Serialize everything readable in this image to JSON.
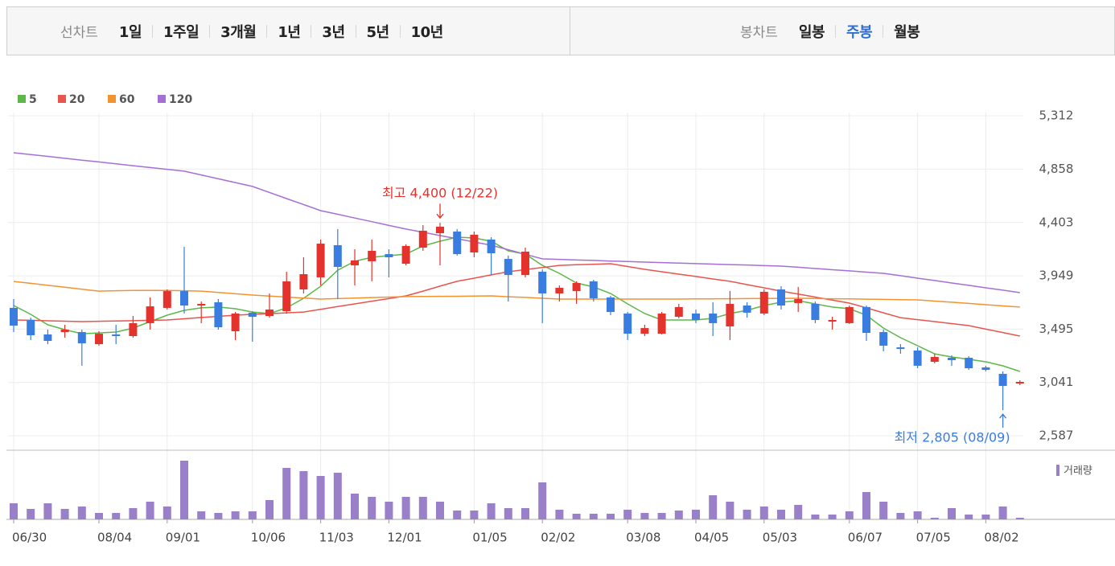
{
  "toolbar": {
    "line_label": "선차트",
    "periods": [
      "1일",
      "1주일",
      "3개월",
      "1년",
      "3년",
      "5년",
      "10년"
    ],
    "candle_label": "봉차트",
    "candle_periods": [
      "일봉",
      "주봉",
      "월봉"
    ],
    "selected": "주봉"
  },
  "chart_data": {
    "type": "candlestick",
    "categories": [
      "06/30",
      null,
      null,
      null,
      null,
      "08/04",
      null,
      null,
      null,
      "09/01",
      null,
      null,
      null,
      null,
      "10/06",
      null,
      null,
      null,
      "11/03",
      null,
      null,
      null,
      "12/01",
      null,
      null,
      null,
      null,
      "01/05",
      null,
      null,
      null,
      "02/02",
      null,
      null,
      null,
      null,
      "03/08",
      null,
      null,
      null,
      "04/05",
      null,
      null,
      null,
      "05/03",
      null,
      null,
      null,
      null,
      "06/07",
      null,
      null,
      null,
      "07/05",
      null,
      null,
      null,
      "08/02",
      null,
      null
    ],
    "open": [
      3676,
      3573,
      3450,
      3470,
      3470,
      3367,
      3450,
      3436,
      3546,
      3676,
      3819,
      3696,
      3724,
      3477,
      3635,
      3607,
      3648,
      3833,
      3936,
      4210,
      4038,
      4073,
      4134,
      4052,
      4189,
      4312,
      4326,
      4148,
      4258,
      4093,
      3956,
      3984,
      3799,
      3819,
      3902,
      3765,
      3628,
      3456,
      3456,
      3600,
      3628,
      3628,
      3518,
      3696,
      3628,
      3833,
      3717,
      3710,
      3559,
      3546,
      3683,
      3470,
      3340,
      3313,
      3217,
      3251,
      3251,
      3169,
      3114,
      3032
    ],
    "high": [
      3751,
      3593,
      3491,
      3532,
      3491,
      3477,
      3532,
      3607,
      3765,
      3833,
      4196,
      3730,
      3751,
      3641,
      3648,
      3799,
      3984,
      4107,
      4258,
      4347,
      4175,
      4258,
      4175,
      4217,
      4381,
      4400,
      4347,
      4326,
      4278,
      4121,
      4189,
      4004,
      3867,
      3902,
      3915,
      3778,
      3641,
      3532,
      3641,
      3710,
      3662,
      3724,
      3819,
      3724,
      3833,
      3860,
      3854,
      3730,
      3600,
      3696,
      3696,
      3491,
      3367,
      3340,
      3285,
      3272,
      3265,
      3183,
      3135,
      3059
    ],
    "low": [
      3470,
      3402,
      3367,
      3422,
      3183,
      3354,
      3367,
      3422,
      3491,
      3662,
      3628,
      3546,
      3491,
      3402,
      3388,
      3593,
      3628,
      3799,
      3867,
      3751,
      3867,
      3902,
      3936,
      4038,
      4162,
      4038,
      4121,
      4107,
      3956,
      3730,
      3936,
      3546,
      3730,
      3710,
      3730,
      3614,
      3402,
      3436,
      3450,
      3587,
      3546,
      3436,
      3402,
      3593,
      3614,
      3662,
      3641,
      3546,
      3491,
      3539,
      3395,
      3306,
      3285,
      3162,
      3204,
      3183,
      3148,
      3135,
      2805,
      3018
    ],
    "close": [
      3525,
      3443,
      3395,
      3491,
      3374,
      3456,
      3436,
      3546,
      3689,
      3819,
      3696,
      3710,
      3511,
      3628,
      3600,
      3662,
      3902,
      3963,
      4223,
      4025,
      4080,
      4162,
      4107,
      4203,
      4333,
      4367,
      4134,
      4299,
      4141,
      3956,
      4155,
      3799,
      3847,
      3888,
      3758,
      3641,
      3456,
      3504,
      3628,
      3683,
      3573,
      3546,
      3710,
      3635,
      3813,
      3696,
      3751,
      3573,
      3573,
      3683,
      3463,
      3354,
      3326,
      3183,
      3258,
      3231,
      3162,
      3148,
      3011,
      3046
    ],
    "up_color": "#e3332c",
    "down_color": "#3a7de0",
    "ylim": [
      2587,
      5312
    ],
    "yticks": [
      {
        "value": 5312,
        "label": "5,312"
      },
      {
        "value": 4858,
        "label": "4,858"
      },
      {
        "value": 4403,
        "label": "4,403"
      },
      {
        "value": 3949,
        "label": "3,949"
      },
      {
        "value": 3495,
        "label": "3,495"
      },
      {
        "value": 3041,
        "label": "3,041"
      },
      {
        "value": 2587,
        "label": "2,587"
      }
    ],
    "grid": true,
    "moving_averages": [
      {
        "name": "5",
        "color": "#5cb848",
        "values": [
          3696,
          3621,
          3532,
          3491,
          3456,
          3463,
          3470,
          3504,
          3559,
          3614,
          3655,
          3676,
          3683,
          3669,
          3641,
          3628,
          3676,
          3758,
          3860,
          3997,
          4073,
          4107,
          4121,
          4134,
          4203,
          4244,
          4278,
          4271,
          4244,
          4162,
          4134,
          4038,
          3970,
          3888,
          3854,
          3799,
          3710,
          3628,
          3573,
          3573,
          3573,
          3587,
          3628,
          3655,
          3696,
          3724,
          3737,
          3710,
          3683,
          3669,
          3614,
          3504,
          3422,
          3354,
          3285,
          3258,
          3238,
          3217,
          3183,
          3135
        ]
      },
      {
        "name": "20",
        "color": "#e8544e",
        "values": [
          3573,
          3570,
          3566,
          3563,
          3559,
          3562,
          3565,
          3567,
          3570,
          3573,
          3583,
          3594,
          3604,
          3614,
          3621,
          3627,
          3634,
          3641,
          3664,
          3687,
          3710,
          3733,
          3755,
          3778,
          3819,
          3861,
          3902,
          3929,
          3957,
          3984,
          4002,
          4020,
          4038,
          4043,
          4047,
          4052,
          4028,
          4004,
          3984,
          3963,
          3943,
          3922,
          3902,
          3874,
          3847,
          3819,
          3794,
          3768,
          3743,
          3717,
          3676,
          3634,
          3593,
          3576,
          3559,
          3542,
          3525,
          3495,
          3466,
          3436
        ]
      },
      {
        "name": "60",
        "color": "#f29330",
        "values": [
          3901,
          3885,
          3868,
          3852,
          3835,
          3819,
          3822,
          3824,
          3825,
          3824,
          3822,
          3819,
          3808,
          3796,
          3785,
          3777,
          3768,
          3760,
          3751,
          3755,
          3760,
          3764,
          3768,
          3772,
          3773,
          3774,
          3775,
          3777,
          3778,
          3771,
          3765,
          3758,
          3751,
          3751,
          3751,
          3751,
          3751,
          3751,
          3751,
          3751,
          3752,
          3753,
          3754,
          3755,
          3756,
          3757,
          3758,
          3756,
          3754,
          3752,
          3750,
          3748,
          3746,
          3744,
          3734,
          3724,
          3714,
          3703,
          3693,
          3683
        ]
      },
      {
        "name": "120",
        "color": "#a56fd6",
        "values": [
          4997,
          4981,
          4966,
          4950,
          4934,
          4919,
          4903,
          4887,
          4871,
          4856,
          4840,
          4808,
          4775,
          4743,
          4710,
          4659,
          4607,
          4556,
          4504,
          4473,
          4441,
          4410,
          4378,
          4347,
          4320,
          4292,
          4265,
          4237,
          4210,
          4171,
          4132,
          4093,
          4089,
          4084,
          4080,
          4075,
          4071,
          4066,
          4062,
          4058,
          4053,
          4049,
          4045,
          4041,
          4036,
          4032,
          4022,
          4011,
          4001,
          3991,
          3980,
          3970,
          3950,
          3929,
          3909,
          3888,
          3868,
          3847,
          3827,
          3806
        ]
      }
    ],
    "volume": {
      "name": "거래량",
      "color": "#9a80c8",
      "ylim": [
        0,
        80
      ],
      "values": [
        20,
        13,
        20,
        13,
        16,
        8,
        8,
        14,
        22,
        16,
        73,
        10,
        8,
        10,
        10,
        24,
        64,
        60,
        54,
        58,
        32,
        28,
        22,
        28,
        28,
        22,
        11,
        11,
        20,
        14,
        14,
        46,
        12,
        7,
        7,
        7,
        12,
        8,
        8,
        11,
        12,
        30,
        22,
        12,
        16,
        12,
        18,
        6,
        6,
        10,
        34,
        22,
        8,
        10,
        2,
        14,
        6,
        6,
        16,
        2
      ]
    },
    "annotations": {
      "high": "최고 4,400 (12/22)",
      "low": "최저 2,805 (08/09)"
    }
  }
}
